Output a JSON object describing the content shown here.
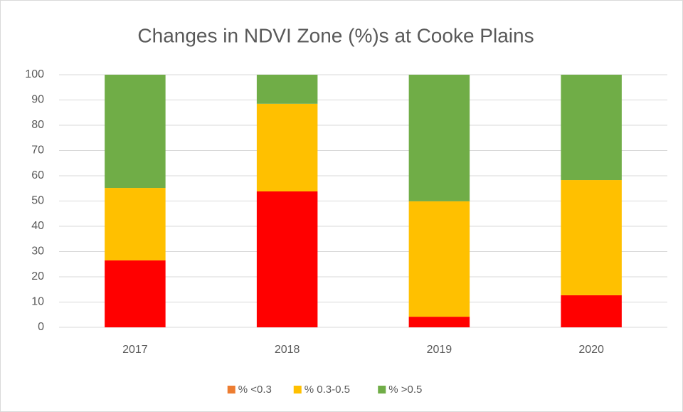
{
  "chart_data": {
    "type": "stacked_bar",
    "title": "Changes in NDVI Zone (%)s at Cooke Plains",
    "categories": [
      "2017",
      "2018",
      "2019",
      "2020"
    ],
    "series": [
      {
        "name": "% <0.3",
        "color": "#ff0000",
        "legend_color": "#ed7d31",
        "values": [
          26.5,
          53.8,
          4.2,
          12.7
        ]
      },
      {
        "name": "% 0.3-0.5",
        "color": "#ffc000",
        "values": [
          28.7,
          34.7,
          45.7,
          45.6
        ]
      },
      {
        "name": "% >0.5",
        "color": "#70ad47",
        "values": [
          44.8,
          11.5,
          50.1,
          41.7
        ]
      }
    ],
    "ylim": [
      0,
      100
    ],
    "yticks": [
      0,
      10,
      20,
      30,
      40,
      50,
      60,
      70,
      80,
      90,
      100
    ],
    "grid": true,
    "legend": "bottom"
  }
}
